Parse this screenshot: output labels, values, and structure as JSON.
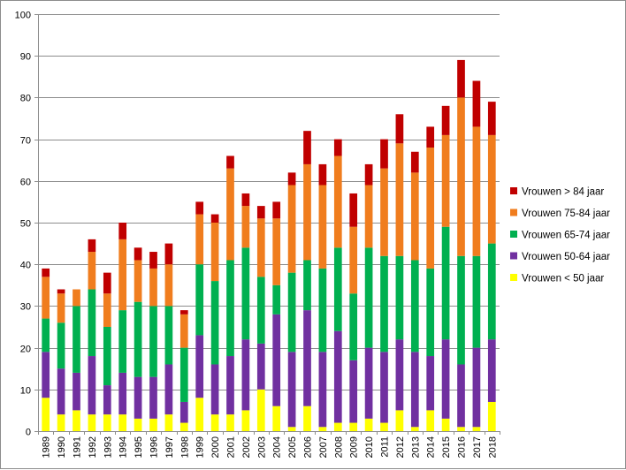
{
  "chart_data": {
    "type": "bar",
    "stacked": true,
    "title": "",
    "xlabel": "",
    "ylabel": "",
    "ylim": [
      0,
      100
    ],
    "yticks": [
      0,
      10,
      20,
      30,
      40,
      50,
      60,
      70,
      80,
      90,
      100
    ],
    "grid": "horizontal",
    "legend_position": "right",
    "categories": [
      "1989",
      "1990",
      "1991",
      "1992",
      "1993",
      "1994",
      "1995",
      "1996",
      "1997",
      "1998",
      "1999",
      "2000",
      "2001",
      "2002",
      "2003",
      "2004",
      "2005",
      "2006",
      "2007",
      "2008",
      "2009",
      "2010",
      "2011",
      "2012",
      "2013",
      "2014",
      "2015",
      "2016",
      "2017",
      "2018"
    ],
    "series": [
      {
        "name": "Vrouwen < 50 jaar",
        "color": "#ffff00",
        "values": [
          8,
          4,
          5,
          4,
          4,
          4,
          3,
          3,
          4,
          2,
          8,
          4,
          4,
          5,
          10,
          6,
          1,
          6,
          1,
          2,
          2,
          3,
          2,
          5,
          1,
          5,
          3,
          1,
          1,
          7
        ]
      },
      {
        "name": "Vrouwen 50-64 jaar",
        "color": "#7030a0",
        "values": [
          11,
          11,
          9,
          14,
          7,
          10,
          10,
          10,
          12,
          5,
          15,
          12,
          14,
          17,
          11,
          22,
          18,
          23,
          18,
          22,
          15,
          17,
          17,
          17,
          18,
          13,
          19,
          15,
          19,
          15
        ]
      },
      {
        "name": "Vrouwen 65-74 jaar",
        "color": "#00b050",
        "values": [
          8,
          11,
          16,
          16,
          14,
          15,
          18,
          17,
          14,
          13,
          17,
          20,
          23,
          22,
          16,
          7,
          19,
          12,
          20,
          20,
          16,
          24,
          23,
          20,
          22,
          21,
          27,
          26,
          22,
          23
        ]
      },
      {
        "name": "Vrouwen 75-84 jaar",
        "color": "#f07d1e",
        "values": [
          10,
          7,
          4,
          9,
          8,
          17,
          10,
          9,
          10,
          8,
          12,
          14,
          22,
          10,
          14,
          16,
          21,
          23,
          20,
          22,
          16,
          15,
          21,
          27,
          21,
          29,
          22,
          38,
          31,
          26
        ]
      },
      {
        "name": "Vrouwen > 84 jaar",
        "color": "#c00000",
        "values": [
          2,
          1,
          0,
          3,
          5,
          4,
          3,
          4,
          5,
          1,
          3,
          2,
          3,
          3,
          3,
          4,
          3,
          8,
          5,
          4,
          8,
          5,
          7,
          7,
          5,
          5,
          7,
          9,
          11,
          8
        ]
      }
    ]
  }
}
